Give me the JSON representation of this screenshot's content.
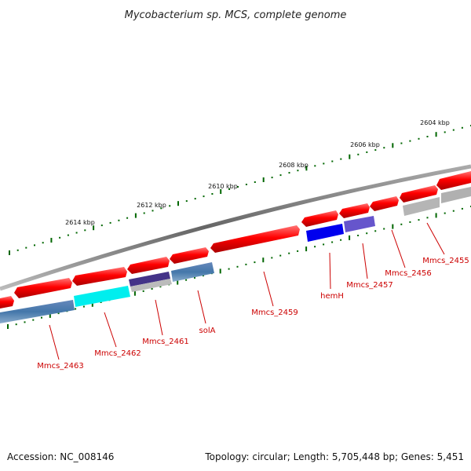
{
  "title": "Mycobacterium sp. MCS, complete genome",
  "footer": {
    "accession": "Accession: NC_008146",
    "topology": "Topology: circular; Length: 5,705,448 bp; Genes: 5,451"
  },
  "kbp_labels": [
    "2604 kbp",
    "2606 kbp",
    "2608 kbp",
    "2610 kbp",
    "2612 kbp",
    "2614 kbp"
  ],
  "gene_labels": [
    "Mmcs_2455",
    "Mmcs_2456",
    "Mmcs_2457",
    "hemH",
    "Mmcs_2459",
    "solA",
    "Mmcs_2461",
    "Mmcs_2462",
    "Mmcs_2463"
  ],
  "colors": {
    "forward_gene": "#ff0000",
    "backbone": "#777777",
    "tick": "#006600",
    "label": "#cc0000",
    "hemH": "#0000ee",
    "Mmcs_2457": "#6655cc",
    "Mmcs_2461": "#443388",
    "Mmcs_2462": "#00eeee",
    "steelblue": "#4477aa",
    "grey": "#aaaaaa"
  }
}
